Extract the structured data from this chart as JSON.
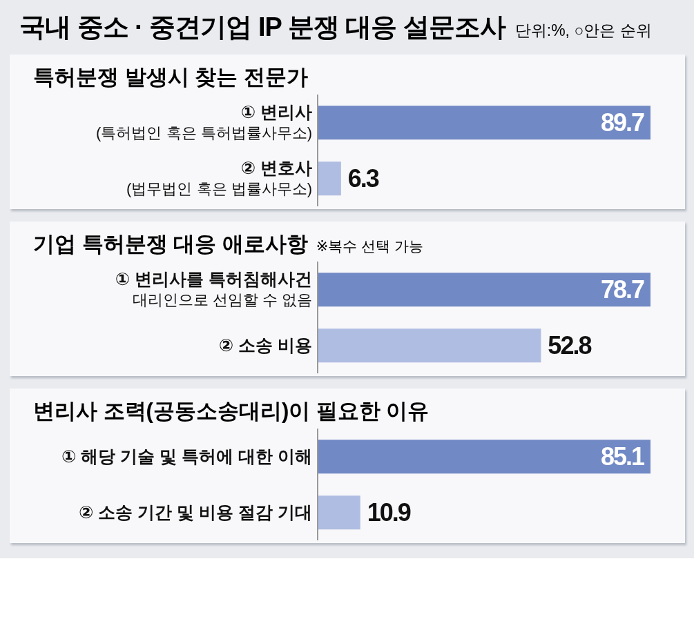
{
  "chart_data": [
    {
      "type": "other",
      "title": "국내 중소 · 중견기업 IP 분쟁 대응 설문조사",
      "annotations": [
        "단위:%, ○안은 순위"
      ]
    },
    {
      "type": "bar",
      "orientation": "horizontal",
      "title": "특허분쟁 발생시 찾는 전문가",
      "categories": [
        "① 변리사\n(특허법인 혹은 특허법률사무소)",
        "② 변호사\n(법무법인 혹은 법률사무소)"
      ],
      "values": [
        89.7,
        6.3
      ],
      "colors": [
        "#7189c4",
        "#afbde2"
      ],
      "tick_labels": "y",
      "data_labels": true
    },
    {
      "type": "bar",
      "orientation": "horizontal",
      "title": "기업 특허분쟁 대응 애로사항",
      "subtitle": "※복수 선택 가능",
      "categories": [
        "① 변리사를 특허침해사건\n대리인으로 선임할 수 없음",
        "② 소송 비용"
      ],
      "values": [
        78.7,
        52.8
      ],
      "colors": [
        "#7189c4",
        "#afbde2"
      ],
      "tick_labels": "y",
      "data_labels": true
    },
    {
      "type": "bar",
      "orientation": "horizontal",
      "title": "변리사 조력(공동소송대리)이 필요한 이유",
      "categories": [
        "① 해당 기술 및 특허에 대한 이해",
        "② 소송 기간 및 비용 절감 기대"
      ],
      "values": [
        85.1,
        10.9
      ],
      "colors": [
        "#7189c4",
        "#afbde2"
      ],
      "tick_labels": "y",
      "data_labels": true
    }
  ]
}
